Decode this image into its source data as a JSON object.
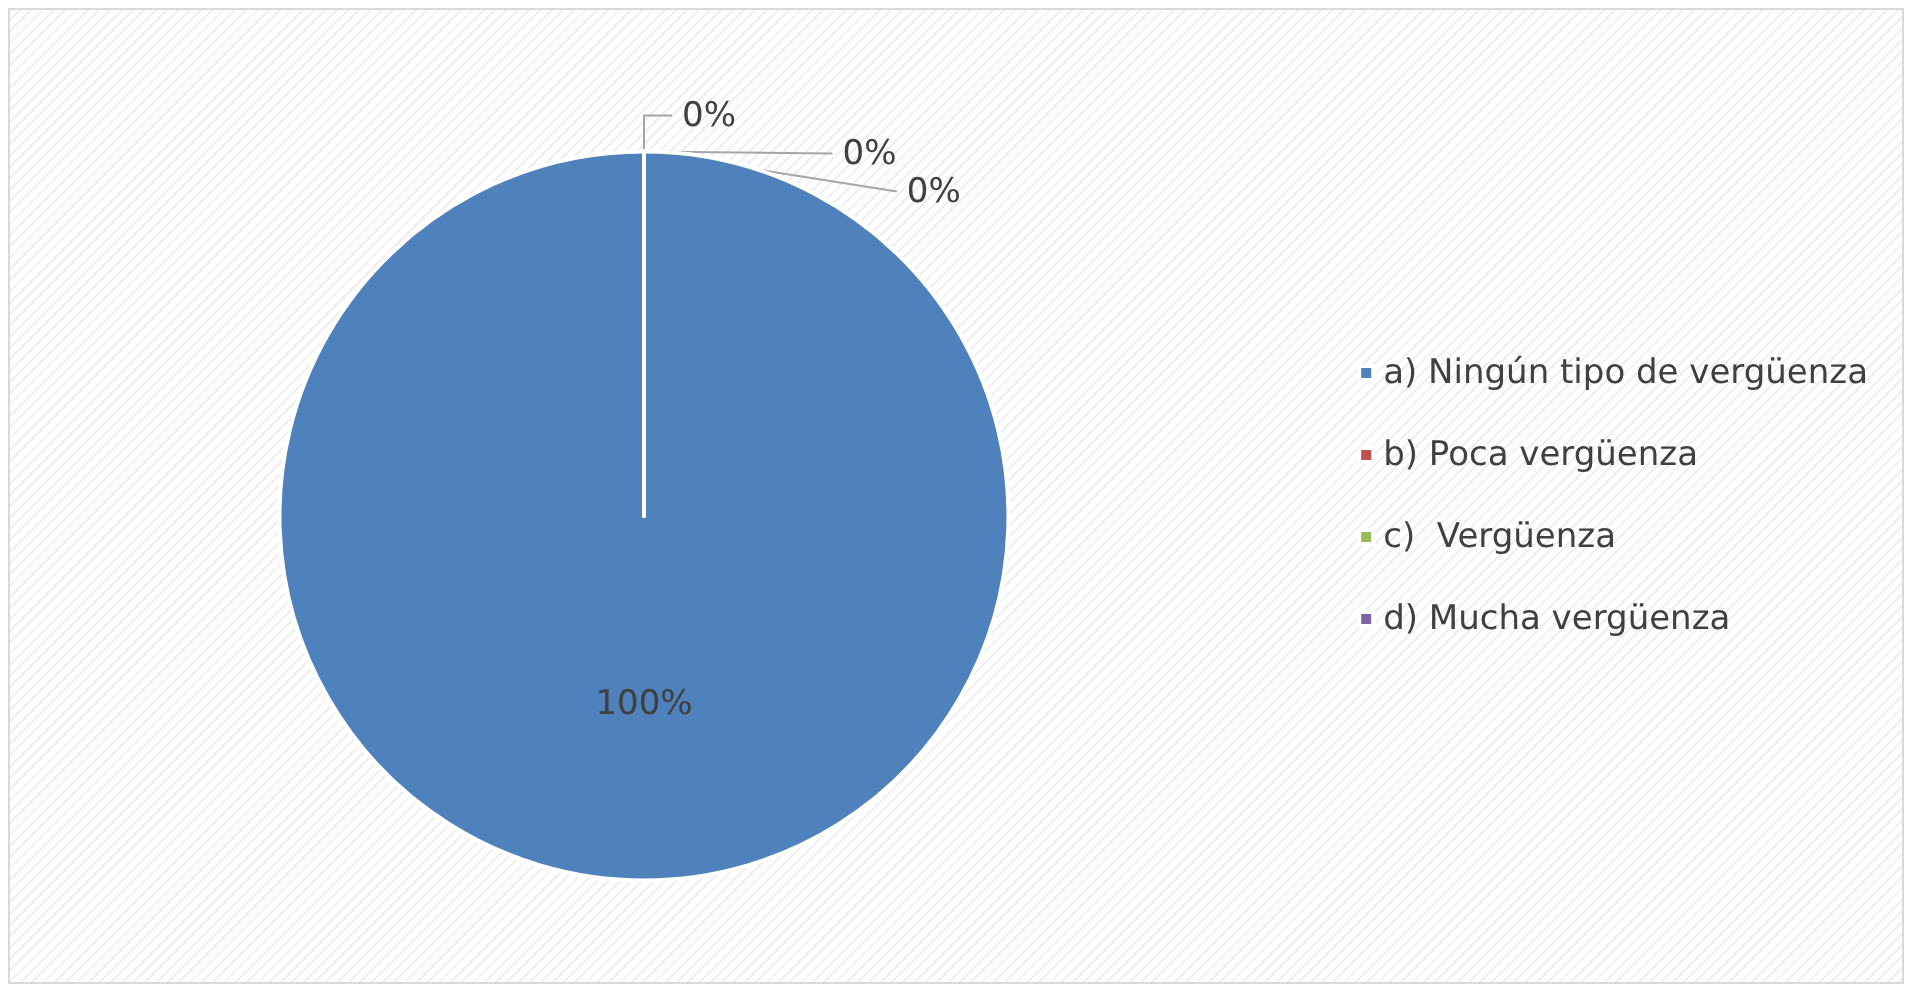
{
  "chart_data": {
    "type": "pie",
    "categories": [
      "a) Ningún tipo de vergüenza",
      "b) Poca vergüenza",
      "c)  Vergüenza",
      "d) Mucha vergüenza"
    ],
    "values": [
      100,
      0,
      0,
      0
    ],
    "colors": [
      "#4f81bd",
      "#c0504d",
      "#9bbb59",
      "#8064a2"
    ],
    "value_labels": [
      "100%",
      "0%",
      "0%",
      "0%"
    ],
    "legend": "right"
  }
}
